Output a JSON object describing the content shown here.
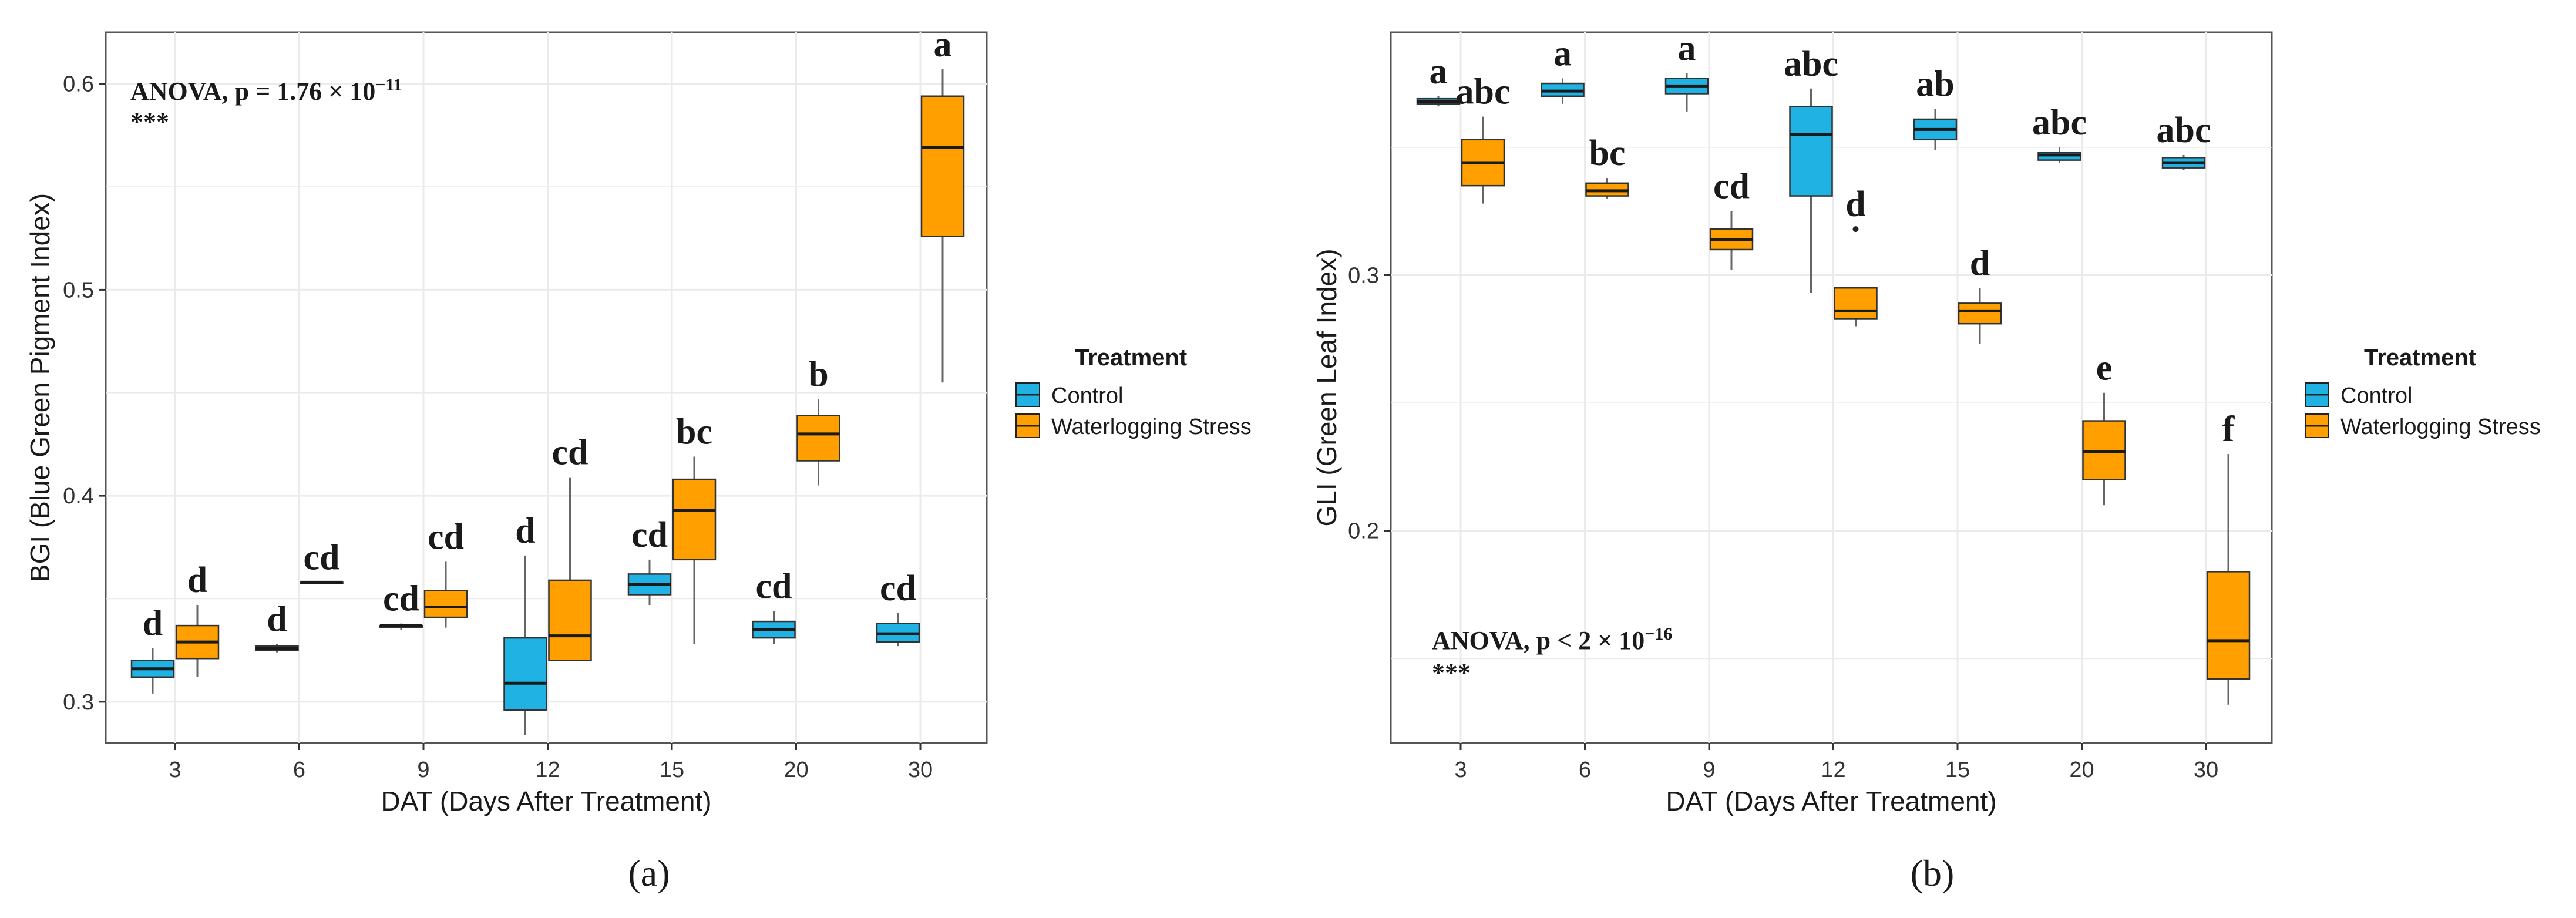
{
  "colors": {
    "control": "#1FB2E3",
    "stress": "#FFA000",
    "median": "#1a1a1a",
    "grid": "#ebebeb",
    "frame": "#555555"
  },
  "legend": {
    "title": "Treatment",
    "control": "Control",
    "stress": "Waterlogging Stress"
  },
  "chart_data": [
    {
      "type": "boxplot",
      "panel_label": "(a)",
      "xlabel": "DAT (Days After Treatment)",
      "ylabel": "BGI (Blue Green Pigment Index)",
      "ylim": [
        0.28,
        0.625
      ],
      "yticks": [
        0.3,
        0.4,
        0.5,
        0.6
      ],
      "ytick_labels": [
        "0.3",
        "0.4",
        "0.5",
        "0.6"
      ],
      "categories": [
        "3",
        "6",
        "9",
        "12",
        "15",
        "20",
        "30"
      ],
      "anova_text": "ANOVA, p = 1.76 × 10",
      "anova_exp": "−11",
      "anova_stars": "***",
      "series": [
        {
          "name": "Control",
          "boxes": [
            {
              "min": 0.304,
              "q1": 0.312,
              "median": 0.316,
              "q3": 0.32,
              "max": 0.326,
              "label": "d"
            },
            {
              "min": 0.324,
              "q1": 0.325,
              "median": 0.326,
              "q3": 0.327,
              "max": 0.328,
              "label": "d"
            },
            {
              "min": 0.335,
              "q1": 0.336,
              "median": 0.337,
              "q3": 0.337,
              "max": 0.338,
              "label": "cd"
            },
            {
              "min": 0.284,
              "q1": 0.296,
              "median": 0.309,
              "q3": 0.331,
              "max": 0.371,
              "label": "d"
            },
            {
              "min": 0.347,
              "q1": 0.352,
              "median": 0.357,
              "q3": 0.362,
              "max": 0.369,
              "label": "cd"
            },
            {
              "min": 0.328,
              "q1": 0.331,
              "median": 0.335,
              "q3": 0.339,
              "max": 0.344,
              "label": "cd"
            },
            {
              "min": 0.327,
              "q1": 0.329,
              "median": 0.333,
              "q3": 0.338,
              "max": 0.343,
              "label": "cd"
            }
          ]
        },
        {
          "name": "Waterlogging Stress",
          "boxes": [
            {
              "min": 0.312,
              "q1": 0.321,
              "median": 0.329,
              "q3": 0.337,
              "max": 0.347,
              "label": "d"
            },
            {
              "min": 0.358,
              "q1": 0.358,
              "median": 0.358,
              "q3": 0.358,
              "max": 0.358,
              "label": "cd"
            },
            {
              "min": 0.336,
              "q1": 0.341,
              "median": 0.346,
              "q3": 0.354,
              "max": 0.368,
              "label": "cd"
            },
            {
              "min": 0.32,
              "q1": 0.32,
              "median": 0.332,
              "q3": 0.359,
              "max": 0.409,
              "label": "cd"
            },
            {
              "min": 0.328,
              "q1": 0.369,
              "median": 0.393,
              "q3": 0.408,
              "max": 0.419,
              "label": "bc"
            },
            {
              "min": 0.405,
              "q1": 0.417,
              "median": 0.43,
              "q3": 0.439,
              "max": 0.447,
              "label": "b"
            },
            {
              "min": 0.455,
              "q1": 0.526,
              "median": 0.569,
              "q3": 0.594,
              "max": 0.607,
              "label": "a"
            }
          ]
        }
      ]
    },
    {
      "type": "boxplot",
      "panel_label": "(b)",
      "xlabel": "DAT (Days After Treatment)",
      "ylabel": "GLI (Green Leaf Index)",
      "ylim": [
        0.117,
        0.395
      ],
      "yticks": [
        0.2,
        0.3
      ],
      "ytick_labels": [
        "0.2",
        "0.3"
      ],
      "categories": [
        "3",
        "6",
        "9",
        "12",
        "15",
        "20",
        "30"
      ],
      "anova_text": "ANOVA, p < 2 × 10",
      "anova_exp": "−16",
      "anova_stars": "***",
      "series": [
        {
          "name": "Control",
          "boxes": [
            {
              "min": 0.366,
              "q1": 0.367,
              "median": 0.368,
              "q3": 0.369,
              "max": 0.37,
              "label": "a"
            },
            {
              "min": 0.367,
              "q1": 0.37,
              "median": 0.372,
              "q3": 0.375,
              "max": 0.377,
              "label": "a"
            },
            {
              "min": 0.364,
              "q1": 0.371,
              "median": 0.374,
              "q3": 0.377,
              "max": 0.379,
              "label": "a"
            },
            {
              "min": 0.293,
              "q1": 0.331,
              "median": 0.355,
              "q3": 0.366,
              "max": 0.373,
              "label": "abc"
            },
            {
              "min": 0.349,
              "q1": 0.353,
              "median": 0.357,
              "q3": 0.361,
              "max": 0.365,
              "label": "ab"
            },
            {
              "min": 0.344,
              "q1": 0.345,
              "median": 0.347,
              "q3": 0.348,
              "max": 0.35,
              "label": "abc"
            },
            {
              "min": 0.341,
              "q1": 0.342,
              "median": 0.344,
              "q3": 0.346,
              "max": 0.347,
              "label": "abc"
            }
          ]
        },
        {
          "name": "Waterlogging Stress",
          "boxes": [
            {
              "min": 0.328,
              "q1": 0.335,
              "median": 0.344,
              "q3": 0.353,
              "max": 0.362,
              "label": "abc"
            },
            {
              "min": 0.33,
              "q1": 0.331,
              "median": 0.333,
              "q3": 0.336,
              "max": 0.338,
              "label": "bc"
            },
            {
              "min": 0.302,
              "q1": 0.31,
              "median": 0.314,
              "q3": 0.318,
              "max": 0.325,
              "label": "cd"
            },
            {
              "min": 0.28,
              "q1": 0.283,
              "median": 0.286,
              "q3": 0.295,
              "max": 0.295,
              "label": "d",
              "outlier": 0.318
            },
            {
              "min": 0.273,
              "q1": 0.281,
              "median": 0.286,
              "q3": 0.289,
              "max": 0.295,
              "label": "d"
            },
            {
              "min": 0.21,
              "q1": 0.22,
              "median": 0.231,
              "q3": 0.243,
              "max": 0.254,
              "label": "e"
            },
            {
              "min": 0.132,
              "q1": 0.142,
              "median": 0.157,
              "q3": 0.184,
              "max": 0.23,
              "label": "f"
            }
          ]
        }
      ]
    }
  ]
}
